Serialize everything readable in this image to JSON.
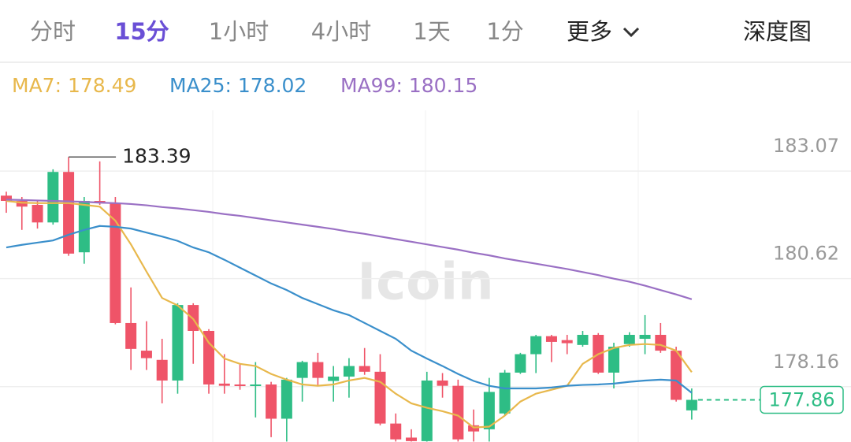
{
  "tabs": [
    "分时",
    "15分",
    "1小时",
    "4小时",
    "1天",
    "1分",
    "更多"
  ],
  "active_tab": 1,
  "depth_chart": "深度图",
  "chart_data": {
    "type": "candlestick",
    "watermark": "Icoin",
    "ylim": [
      176.9,
      185.53
    ],
    "yticks": [
      183.07,
      180.62,
      178.16
    ],
    "grid": true,
    "up_color": "#2ebd85",
    "down_color": "#ef5468",
    "candles": {
      "open": [
        182.51,
        182.39,
        182.3,
        181.9,
        183.05,
        181.22,
        182.39,
        182.34,
        179.61,
        178.98,
        178.77,
        178.3,
        180.02,
        179.43,
        178.23,
        178.21,
        178.18,
        178.21,
        177.43,
        178.36,
        178.72,
        178.29,
        178.39,
        178.63,
        178.5,
        177.32,
        177.0,
        176.92,
        178.3,
        178.18,
        177.28,
        177.19,
        177.55,
        178.48,
        178.9,
        179.31,
        179.22,
        179.11,
        179.34,
        178.48,
        179.13,
        179.25,
        179.34,
        178.98,
        177.62
      ],
      "close": [
        182.39,
        182.26,
        181.9,
        183.05,
        181.19,
        182.39,
        182.34,
        179.61,
        179.02,
        178.81,
        178.3,
        180.02,
        179.43,
        178.21,
        178.18,
        178.18,
        178.21,
        177.43,
        178.32,
        178.72,
        178.36,
        178.39,
        178.63,
        178.5,
        177.32,
        176.96,
        176.92,
        178.3,
        178.18,
        176.96,
        177.14,
        178.04,
        178.48,
        178.9,
        179.31,
        179.18,
        179.15,
        179.34,
        178.48,
        179.07,
        179.34,
        179.34,
        178.98,
        177.86,
        177.86
      ],
      "high": [
        182.6,
        182.48,
        182.39,
        183.11,
        183.39,
        182.48,
        183.29,
        182.48,
        180.42,
        179.65,
        179.25,
        180.06,
        180.06,
        179.47,
        178.9,
        178.68,
        178.72,
        178.27,
        178.36,
        178.75,
        178.93,
        178.63,
        178.81,
        179.04,
        178.9,
        177.55,
        177.19,
        178.5,
        178.47,
        178.32,
        177.64,
        178.36,
        178.54,
        178.93,
        179.34,
        179.34,
        179.34,
        179.43,
        179.38,
        179.16,
        179.4,
        179.79,
        179.61,
        179.07,
        178.12
      ],
      "low": [
        182.12,
        181.73,
        181.76,
        181.85,
        181.14,
        180.96,
        182.3,
        179.58,
        178.54,
        178.54,
        177.78,
        178.0,
        178.68,
        178.0,
        178.0,
        178.09,
        177.46,
        177.01,
        176.91,
        177.82,
        178.18,
        177.82,
        177.91,
        178.43,
        177.28,
        176.91,
        176.91,
        176.91,
        177.91,
        176.91,
        176.91,
        176.91,
        177.5,
        178.45,
        178.47,
        178.72,
        178.9,
        179.07,
        178.45,
        178.12,
        179.07,
        178.9,
        178.93,
        177.82,
        177.41
      ]
    },
    "series": [
      {
        "name": "MA7: 178.49",
        "color": "#e8b84c",
        "values": [
          182.39,
          182.35,
          182.34,
          182.34,
          182.34,
          182.3,
          182.26,
          181.94,
          181.4,
          180.78,
          180.18,
          180.01,
          179.7,
          179.16,
          178.8,
          178.68,
          178.63,
          178.45,
          178.32,
          178.21,
          178.18,
          178.21,
          178.3,
          178.36,
          178.27,
          178.0,
          177.78,
          177.68,
          177.6,
          177.5,
          177.23,
          177.25,
          177.5,
          177.82,
          178.0,
          178.09,
          178.18,
          178.68,
          178.9,
          179.04,
          179.11,
          179.13,
          179.11,
          178.98,
          178.49
        ]
      },
      {
        "name": "MA25: 178.02",
        "color": "#3a8fcb",
        "values": [
          181.33,
          181.39,
          181.44,
          181.49,
          181.62,
          181.73,
          181.82,
          181.8,
          181.76,
          181.67,
          181.58,
          181.48,
          181.33,
          181.22,
          181.05,
          180.87,
          180.69,
          180.51,
          180.36,
          180.18,
          180.04,
          179.9,
          179.79,
          179.61,
          179.43,
          179.25,
          178.98,
          178.8,
          178.63,
          178.45,
          178.29,
          178.18,
          178.12,
          178.12,
          178.12,
          178.14,
          178.18,
          178.2,
          178.21,
          178.23,
          178.27,
          178.3,
          178.32,
          178.3,
          178.02
        ]
      },
      {
        "name": "MA99: 180.15",
        "color": "#9a70c4",
        "values": [
          182.42,
          182.41,
          182.4,
          182.39,
          182.38,
          182.37,
          182.35,
          182.34,
          182.32,
          182.29,
          182.25,
          182.22,
          182.18,
          182.14,
          182.09,
          182.05,
          182.0,
          181.95,
          181.9,
          181.85,
          181.8,
          181.75,
          181.69,
          181.64,
          181.58,
          181.52,
          181.46,
          181.4,
          181.34,
          181.28,
          181.21,
          181.15,
          181.08,
          181.02,
          180.96,
          180.9,
          180.84,
          180.77,
          180.7,
          180.62,
          180.55,
          180.46,
          180.36,
          180.26,
          180.15
        ]
      }
    ]
  }
}
